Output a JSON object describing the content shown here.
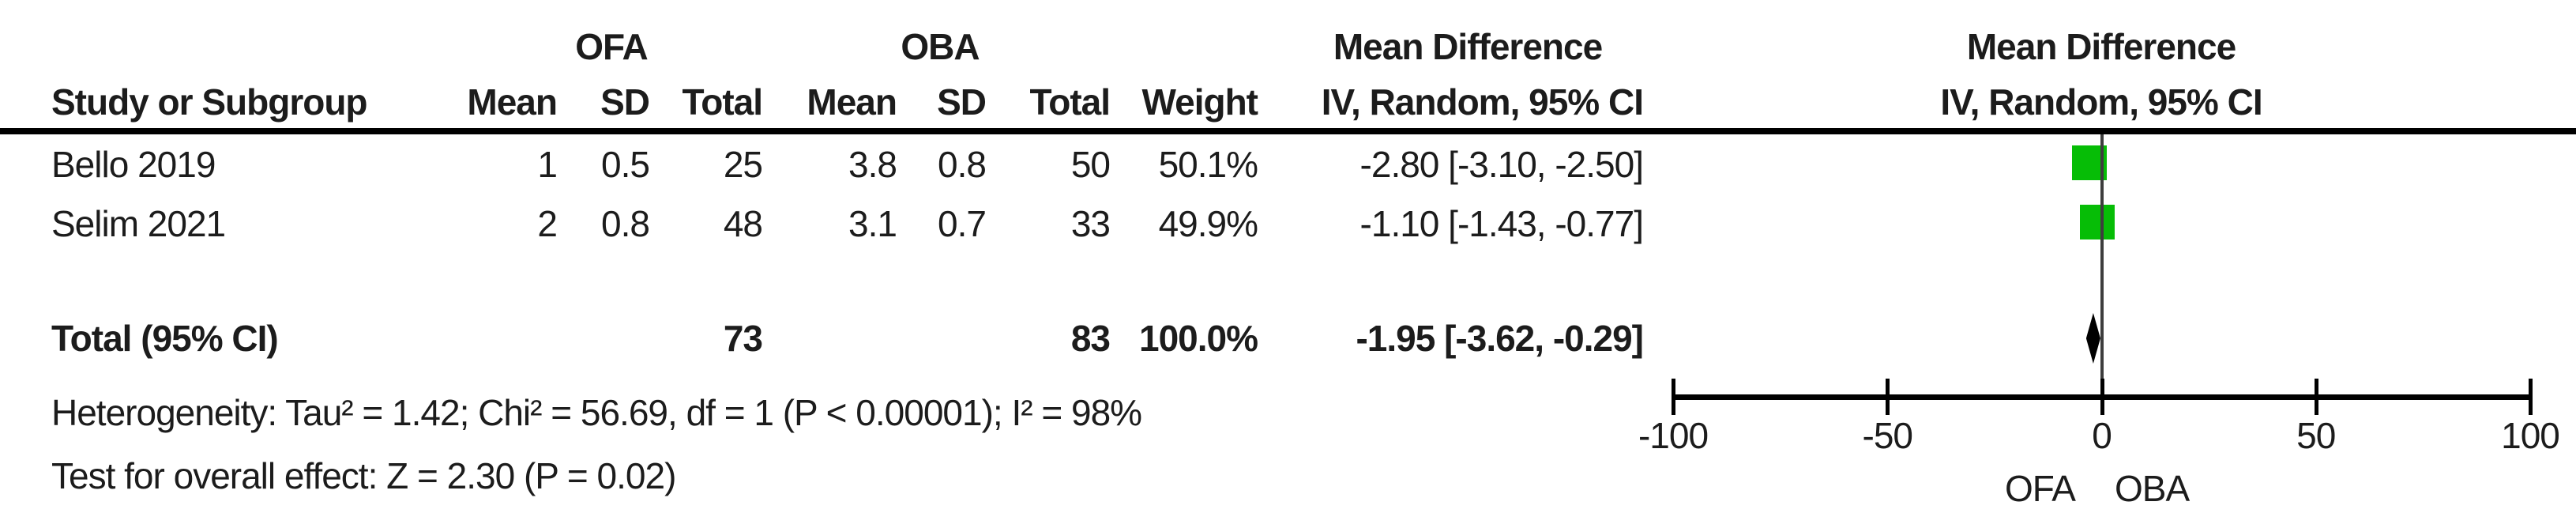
{
  "table": {
    "group_headers": {
      "ofa": "OFA",
      "oba": "OBA",
      "md_text": "Mean Difference",
      "md_plot": "Mean Difference"
    },
    "col_headers": {
      "study": "Study or Subgroup",
      "ofa_mean": "Mean",
      "ofa_sd": "SD",
      "ofa_total": "Total",
      "oba_mean": "Mean",
      "oba_sd": "SD",
      "oba_total": "Total",
      "weight": "Weight",
      "iv_text": "IV, Random, 95% CI",
      "iv_plot": "IV, Random, 95% CI"
    },
    "rows": [
      {
        "study": "Bello 2019",
        "ofa_mean": "1",
        "ofa_sd": "0.5",
        "ofa_total": "25",
        "oba_mean": "3.8",
        "oba_sd": "0.8",
        "oba_total": "50",
        "weight": "50.1%",
        "md_ci": "-2.80 [-3.10, -2.50]"
      },
      {
        "study": "Selim 2021",
        "ofa_mean": "2",
        "ofa_sd": "0.8",
        "ofa_total": "48",
        "oba_mean": "3.1",
        "oba_sd": "0.7",
        "oba_total": "33",
        "weight": "49.9%",
        "md_ci": "-1.10 [-1.43, -0.77]"
      }
    ],
    "total_row": {
      "label": "Total (95% CI)",
      "ofa_total": "73",
      "oba_total": "83",
      "weight": "100.0%",
      "md_ci": "-1.95 [-3.62, -0.29]"
    },
    "footnotes": {
      "heterogeneity": "Heterogeneity: Tau² = 1.42; Chi² = 56.69, df = 1 (P < 0.00001); I² = 98%",
      "overall_effect": "Test for overall effect: Z = 2.30 (P = 0.02)"
    }
  },
  "chart_data": {
    "type": "forest",
    "measure": "Mean Difference",
    "model": "IV, Random, 95% CI",
    "xlim": [
      -100,
      100
    ],
    "ticks": [
      -100,
      -50,
      0,
      50,
      100
    ],
    "tick_labels": [
      "-100",
      "-50",
      "0",
      "50",
      "100"
    ],
    "favours_left": "OFA",
    "favours_right": "OBA",
    "studies": [
      {
        "name": "Bello 2019",
        "md": -2.8,
        "ci_low": -3.1,
        "ci_high": -2.5,
        "weight_pct": 50.1
      },
      {
        "name": "Selim 2021",
        "md": -1.1,
        "ci_low": -1.43,
        "ci_high": -0.77,
        "weight_pct": 49.9
      }
    ],
    "total": {
      "md": -1.95,
      "ci_low": -3.62,
      "ci_high": -0.29
    },
    "colors": {
      "square": "#06bd06",
      "diamond": "#000000",
      "axis": "#000000",
      "zero_line": "#3d3d3d"
    }
  }
}
